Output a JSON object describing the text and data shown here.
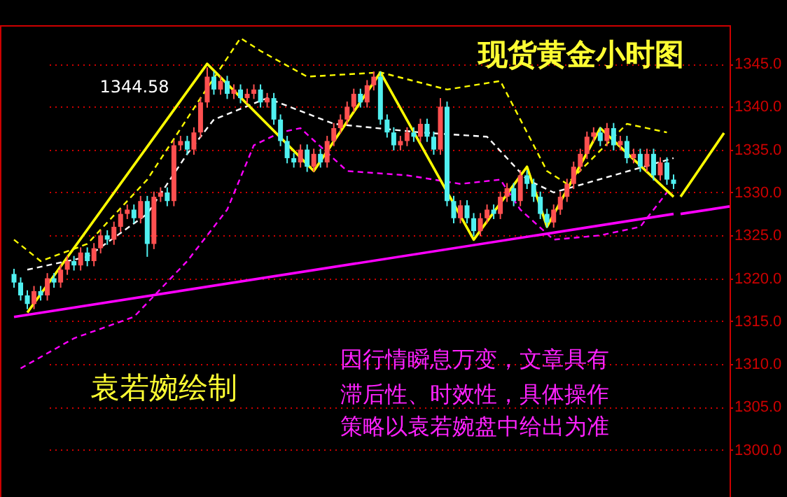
{
  "chart_data": {
    "type": "candlestick",
    "title": "现货黄金小时图",
    "categories": [
      null,
      null,
      null,
      null,
      null,
      null,
      null,
      null,
      null,
      null,
      null,
      null,
      null,
      null,
      null,
      null,
      null,
      null,
      null,
      null,
      null,
      null,
      null,
      null,
      null,
      null,
      null,
      null,
      null,
      null,
      null,
      null,
      null,
      null,
      null,
      null,
      null,
      null,
      null,
      null,
      null,
      null,
      null,
      null,
      null,
      null,
      null,
      null,
      null,
      null,
      null,
      null,
      null,
      null,
      null,
      null,
      null,
      null,
      null,
      null,
      null,
      null,
      null,
      null,
      null,
      null,
      null,
      null,
      null,
      null,
      null,
      null,
      null,
      null,
      null,
      null,
      null,
      null,
      null,
      null,
      null,
      null,
      null,
      null,
      null,
      null,
      null,
      null,
      null,
      null,
      null,
      null,
      null,
      null,
      null,
      null,
      null,
      null,
      null,
      null
    ],
    "ohlc": [
      [
        1320.5,
        1321.1,
        1318.9,
        1319.5
      ],
      [
        1319.5,
        1320.1,
        1317.4,
        1318
      ],
      [
        1318,
        1318.6,
        1316.4,
        1317
      ],
      [
        1317,
        1319.1,
        1316.4,
        1318.5
      ],
      [
        1318.5,
        1319.1,
        1317.4,
        1318
      ],
      [
        1318,
        1320.6,
        1317.4,
        1320
      ],
      [
        1320,
        1320.6,
        1318.9,
        1319.5
      ],
      [
        1319.5,
        1321.6,
        1318.9,
        1321
      ],
      [
        1321,
        1322.6,
        1320.4,
        1322
      ],
      [
        1322,
        1322.6,
        1320.9,
        1321.5
      ],
      [
        1321.5,
        1323.6,
        1320.9,
        1323
      ],
      [
        1323,
        1323.6,
        1321.4,
        1322
      ],
      [
        1322,
        1324.1,
        1321.4,
        1323.5
      ],
      [
        1323.5,
        1325.6,
        1322.9,
        1325
      ],
      [
        1325,
        1325.6,
        1323.9,
        1324.5
      ],
      [
        1324.5,
        1326.6,
        1323.9,
        1326
      ],
      [
        1326,
        1328.1,
        1325.4,
        1327.5
      ],
      [
        1327.5,
        1328.6,
        1326.9,
        1328
      ],
      [
        1328,
        1328.6,
        1326.4,
        1327
      ],
      [
        1327,
        1329.6,
        1326.4,
        1329
      ],
      [
        1329,
        1329.6,
        1322.5,
        1324
      ],
      [
        1324,
        1330.1,
        1323.4,
        1329.5
      ],
      [
        1329.5,
        1330.6,
        1328.9,
        1330
      ],
      [
        1330,
        1330.6,
        1328.4,
        1329
      ],
      [
        1329,
        1336.1,
        1328.4,
        1335.5
      ],
      [
        1335.5,
        1336.6,
        1334.9,
        1336
      ],
      [
        1336,
        1336.6,
        1334.4,
        1335
      ],
      [
        1335,
        1337.6,
        1334.4,
        1337
      ],
      [
        1337,
        1341.1,
        1336.4,
        1340.5
      ],
      [
        1340.5,
        1344.58,
        1339.9,
        1343.5
      ],
      [
        1343.5,
        1344.1,
        1341.4,
        1342
      ],
      [
        1342,
        1343.6,
        1341.4,
        1343
      ],
      [
        1343,
        1343.6,
        1340.9,
        1341.5
      ],
      [
        1341.5,
        1342.6,
        1340.9,
        1342
      ],
      [
        1342,
        1342.6,
        1340.4,
        1341
      ],
      [
        1341,
        1342.1,
        1340.4,
        1341.5
      ],
      [
        1341.5,
        1342.6,
        1340.9,
        1342
      ],
      [
        1342,
        1342.6,
        1339.9,
        1340.5
      ],
      [
        1340.5,
        1341.6,
        1339.9,
        1341
      ],
      [
        1341,
        1341.6,
        1337.9,
        1338.5
      ],
      [
        1338.5,
        1339.1,
        1335.4,
        1336
      ],
      [
        1336,
        1336.6,
        1333.4,
        1334
      ],
      [
        1334,
        1334.6,
        1332.9,
        1333.5
      ],
      [
        1333.5,
        1335.6,
        1332.9,
        1335
      ],
      [
        1335,
        1335.6,
        1332.4,
        1333
      ],
      [
        1333,
        1335.1,
        1332.4,
        1334.5
      ],
      [
        1334.5,
        1335.1,
        1332.9,
        1333.5
      ],
      [
        1333.5,
        1336.6,
        1332.9,
        1336
      ],
      [
        1336,
        1338.1,
        1335.4,
        1337.5
      ],
      [
        1337.5,
        1339.1,
        1336.9,
        1338.5
      ],
      [
        1338.5,
        1340.6,
        1337.9,
        1340
      ],
      [
        1340,
        1342.1,
        1339.4,
        1341.5
      ],
      [
        1341.5,
        1342.1,
        1339.9,
        1340.5
      ],
      [
        1340.5,
        1343.1,
        1339.9,
        1342.5
      ],
      [
        1342.5,
        1344.1,
        1341.9,
        1343.5
      ],
      [
        1343.5,
        1344.1,
        1337.9,
        1338.5
      ],
      [
        1338.5,
        1339.1,
        1336.4,
        1337
      ],
      [
        1337,
        1337.6,
        1334.9,
        1335.5
      ],
      [
        1335.5,
        1336.6,
        1334.9,
        1336
      ],
      [
        1336,
        1337.6,
        1335.4,
        1337
      ],
      [
        1337,
        1337.6,
        1335.9,
        1336.5
      ],
      [
        1336.5,
        1338.6,
        1335.9,
        1338
      ],
      [
        1338,
        1338.6,
        1335.9,
        1336.5
      ],
      [
        1336.5,
        1337.1,
        1334.4,
        1335
      ],
      [
        1335,
        1341,
        1334.4,
        1340
      ],
      [
        1340,
        1340.6,
        1328.4,
        1329
      ],
      [
        1329,
        1329.6,
        1326.4,
        1327
      ],
      [
        1327,
        1329.1,
        1326.4,
        1328.5
      ],
      [
        1328.5,
        1329.1,
        1326.4,
        1327
      ],
      [
        1327,
        1327.6,
        1324.9,
        1325.5
      ],
      [
        1325.5,
        1327.6,
        1324.9,
        1327
      ],
      [
        1327,
        1328.6,
        1326.4,
        1328
      ],
      [
        1328,
        1328.6,
        1326.9,
        1327.5
      ],
      [
        1327.5,
        1330.1,
        1326.9,
        1329.5
      ],
      [
        1329.5,
        1331.1,
        1328.9,
        1330.5
      ],
      [
        1330.5,
        1331.1,
        1328.4,
        1329
      ],
      [
        1329,
        1332.6,
        1328.4,
        1332
      ],
      [
        1332,
        1332.6,
        1330.4,
        1331
      ],
      [
        1331,
        1331.6,
        1328.9,
        1329.5
      ],
      [
        1329.5,
        1330.1,
        1326.9,
        1327.5
      ],
      [
        1327.5,
        1328.1,
        1325.9,
        1326.5
      ],
      [
        1326.5,
        1328.6,
        1325.9,
        1328
      ],
      [
        1328,
        1330.1,
        1327.4,
        1329.5
      ],
      [
        1329.5,
        1331.6,
        1328.9,
        1331
      ],
      [
        1331,
        1333.6,
        1330.4,
        1333
      ],
      [
        1333,
        1335.1,
        1332.4,
        1334.5
      ],
      [
        1334.5,
        1337.1,
        1333.9,
        1336.5
      ],
      [
        1336.5,
        1337.6,
        1335.9,
        1337
      ],
      [
        1337,
        1337.6,
        1335.4,
        1336
      ],
      [
        1336,
        1338.1,
        1335.4,
        1337.5
      ],
      [
        1337.5,
        1338.1,
        1334.9,
        1335.5
      ],
      [
        1335.5,
        1336.6,
        1334.9,
        1336
      ],
      [
        1336,
        1336.6,
        1333.4,
        1334
      ],
      [
        1334,
        1335.1,
        1333.4,
        1334.5
      ],
      [
        1334.5,
        1335.1,
        1332.4,
        1333
      ],
      [
        1333,
        1335.1,
        1332.4,
        1334.5
      ],
      [
        1334.5,
        1335.1,
        1331.4,
        1332
      ],
      [
        1332,
        1334.1,
        1331.4,
        1333.5
      ],
      [
        1333.5,
        1334.1,
        1330.9,
        1331.5
      ],
      [
        1331.5,
        1332.1,
        1330.4,
        1331
      ]
    ],
    "colors": [
      "#50f0f0",
      "#50f0f0",
      "#50f0f0",
      "#ff5050",
      "#50f0f0",
      "#ff5050",
      "#50f0f0",
      "#ff5050",
      "#ff5050",
      "#50f0f0",
      "#ff5050",
      "#50f0f0",
      "#ff5050",
      "#ff5050",
      "#50f0f0",
      "#ff5050",
      "#ff5050",
      "#ff5050",
      "#50f0f0",
      "#ff5050",
      "#50f0f0",
      "#ff5050",
      "#ff5050",
      "#50f0f0",
      "#ff5050",
      "#ff5050",
      "#50f0f0",
      "#ff5050",
      "#ff5050",
      "#ff5050",
      "#50f0f0",
      "#ff5050",
      "#50f0f0",
      "#ff5050",
      "#50f0f0",
      "#ff5050",
      "#ff5050",
      "#50f0f0",
      "#ff5050",
      "#50f0f0",
      "#50f0f0",
      "#50f0f0",
      "#50f0f0",
      "#ff5050",
      "#50f0f0",
      "#ff5050",
      "#50f0f0",
      "#ff5050",
      "#ff5050",
      "#ff5050",
      "#ff5050",
      "#ff5050",
      "#50f0f0",
      "#ff5050",
      "#ff5050",
      "#50f0f0",
      "#50f0f0",
      "#50f0f0",
      "#ff5050",
      "#ff5050",
      "#50f0f0",
      "#ff5050",
      "#50f0f0",
      "#50f0f0",
      "#ff5050",
      "#50f0f0",
      "#50f0f0",
      "#ff5050",
      "#50f0f0",
      "#50f0f0",
      "#ff5050",
      "#ff5050",
      "#50f0f0",
      "#ff5050",
      "#ff5050",
      "#50f0f0",
      "#ff5050",
      "#50f0f0",
      "#50f0f0",
      "#50f0f0",
      "#50f0f0",
      "#ff5050",
      "#ff5050",
      "#ff5050",
      "#ff5050",
      "#ff5050",
      "#ff5050",
      "#ff5050",
      "#50f0f0",
      "#ff5050",
      "#50f0f0",
      "#ff5050",
      "#50f0f0",
      "#ff5050",
      "#50f0f0",
      "#ff5050",
      "#50f0f0",
      "#ff5050",
      "#50f0f0",
      "#50f0f0"
    ],
    "series": [
      {
        "type": "line",
        "color": "#ffff00",
        "line_style": "dashed",
        "values": [
          1324.5,
          null,
          null,
          null,
          1322,
          null,
          null,
          null,
          null,
          null,
          null,
          1324,
          null,
          null,
          null,
          null,
          null,
          null,
          null,
          null,
          1331.5,
          null,
          null,
          null,
          null,
          null,
          null,
          null,
          1341,
          null,
          null,
          null,
          null,
          null,
          1348,
          null,
          null,
          1346.5,
          null,
          null,
          null,
          null,
          null,
          null,
          1343.5,
          null,
          null,
          null,
          null,
          null,
          null,
          null,
          null,
          null,
          null,
          1344,
          null,
          null,
          null,
          null,
          null,
          null,
          null,
          null,
          null,
          1342,
          null,
          null,
          null,
          null,
          null,
          null,
          null,
          1343,
          null,
          null,
          null,
          null,
          null,
          null,
          1332.5,
          null,
          null,
          1331,
          null,
          null,
          null,
          null,
          null,
          null,
          null,
          null,
          1338,
          null,
          null,
          null,
          null,
          null,
          1337,
          null
        ]
      },
      {
        "type": "line",
        "color": "#ffffff",
        "line_style": "dashed",
        "values": [
          null,
          null,
          1321,
          null,
          null,
          null,
          null,
          null,
          null,
          null,
          null,
          1322.5,
          null,
          null,
          null,
          null,
          null,
          null,
          null,
          null,
          1327.5,
          null,
          null,
          null,
          null,
          null,
          1334.5,
          null,
          null,
          null,
          1338.5,
          null,
          null,
          null,
          null,
          null,
          null,
          null,
          1341,
          null,
          null,
          null,
          null,
          null,
          null,
          null,
          null,
          null,
          1338,
          null,
          null,
          null,
          null,
          null,
          null,
          null,
          null,
          null,
          null,
          null,
          null,
          1337,
          null,
          null,
          null,
          null,
          null,
          null,
          null,
          null,
          null,
          1336.5,
          null,
          null,
          null,
          null,
          null,
          1331.5,
          null,
          null,
          null,
          1330,
          null,
          null,
          null,
          null,
          null,
          null,
          null,
          null,
          1332,
          null,
          null,
          null,
          null,
          null,
          null,
          null,
          null,
          1334
        ]
      },
      {
        "type": "line",
        "color": "#ff00ff",
        "line_style": "dashed",
        "values": [
          null,
          1309.5,
          null,
          null,
          null,
          null,
          null,
          null,
          null,
          1313,
          null,
          null,
          null,
          null,
          null,
          null,
          null,
          null,
          1315.5,
          null,
          null,
          null,
          null,
          null,
          null,
          null,
          1322,
          null,
          null,
          null,
          null,
          null,
          1328,
          null,
          null,
          null,
          1335.5,
          null,
          null,
          null,
          1337,
          null,
          null,
          1337.5,
          null,
          null,
          null,
          null,
          null,
          null,
          1332.5,
          null,
          null,
          null,
          null,
          null,
          null,
          null,
          null,
          1332,
          null,
          null,
          null,
          null,
          null,
          null,
          null,
          1331,
          null,
          null,
          null,
          null,
          null,
          1331.5,
          null,
          null,
          1328,
          null,
          null,
          null,
          null,
          1324.5,
          null,
          null,
          null,
          null,
          null,
          null,
          1325,
          null,
          null,
          null,
          null,
          null,
          1326,
          null,
          null,
          null,
          1330,
          null
        ]
      },
      {
        "type": "line",
        "color": "#ff00ff",
        "line_style": "solid",
        "values": [
          1315.5,
          null,
          null,
          null,
          null,
          null,
          null,
          null,
          null,
          null,
          null,
          null,
          null,
          null,
          null,
          null,
          null,
          null,
          null,
          null,
          null,
          null,
          null,
          null,
          null,
          null,
          null,
          null,
          null,
          null,
          null,
          null,
          null,
          null,
          null,
          null,
          null,
          null,
          null,
          null,
          null,
          null,
          null,
          null,
          null,
          null,
          null,
          null,
          null,
          null,
          null,
          null,
          null,
          null,
          null,
          null,
          null,
          null,
          null,
          null,
          null,
          null,
          null,
          null,
          null,
          null,
          null,
          null,
          null,
          null,
          null,
          null,
          null,
          null,
          null,
          null,
          null,
          null,
          null,
          null,
          null,
          null,
          null,
          null,
          null,
          null,
          null,
          null,
          null,
          null,
          null,
          null,
          null,
          null,
          null,
          null,
          null,
          null,
          null,
          1327.5
        ]
      },
      {
        "type": "line",
        "color": "#ffff00",
        "line_style": "solid",
        "values": [
          null,
          null,
          1316,
          null,
          null,
          null,
          null,
          null,
          null,
          null,
          null,
          null,
          null,
          null,
          null,
          null,
          null,
          null,
          null,
          null,
          null,
          null,
          null,
          null,
          null,
          null,
          null,
          null,
          null,
          1345,
          null,
          null,
          null,
          null,
          null,
          null,
          null,
          null,
          null,
          null,
          null,
          null,
          null,
          null,
          null,
          1332.5,
          null,
          null,
          null,
          null,
          null,
          null,
          null,
          null,
          null,
          1344,
          null,
          null,
          null,
          null,
          null,
          null,
          null,
          null,
          null,
          null,
          null,
          null,
          null,
          1324.5,
          null,
          null,
          null,
          null,
          null,
          null,
          null,
          1333,
          null,
          null,
          1326,
          null,
          null,
          null,
          null,
          null,
          null,
          null,
          1337.5,
          null,
          null,
          null,
          null,
          null,
          null,
          null,
          null,
          null,
          null,
          1329.5
        ]
      }
    ],
    "ylim": [
      1294.5,
      1349.5
    ],
    "yticks": [
      {
        "value": 1300,
        "label": "1300.0"
      },
      {
        "value": 1305,
        "label": "1305.0"
      },
      {
        "value": 1310,
        "label": "1310.0"
      },
      {
        "value": 1315,
        "label": "1315.0"
      },
      {
        "value": 1320,
        "label": "1320.0"
      },
      {
        "value": 1325,
        "label": "1325.0"
      },
      {
        "value": 1330,
        "label": "1330.0"
      },
      {
        "value": 1335,
        "label": "1335.0"
      },
      {
        "value": 1340,
        "label": "1340.0"
      },
      {
        "value": 1345,
        "label": "1345.0"
      }
    ],
    "grid": "y",
    "tick_labels": "y",
    "annotations": [
      "1344.58",
      "袁若婉绘制",
      "因行情瞬息万变，文章具有",
      "滞后性、时效性，具体操作",
      "策略以袁若婉盘中给出为准"
    ]
  }
}
